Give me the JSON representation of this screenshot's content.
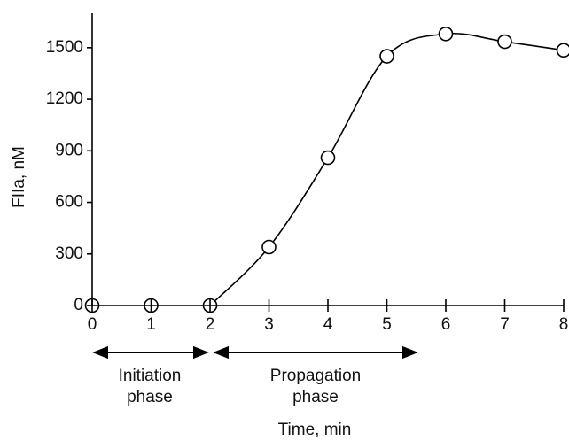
{
  "chart_data": {
    "type": "line",
    "x": [
      0,
      1,
      2,
      3,
      4,
      5,
      6,
      7,
      8
    ],
    "series": [
      {
        "color": "#000000",
        "values": [
          0,
          0,
          0,
          340,
          860,
          1450,
          1580,
          1535,
          1485
        ]
      }
    ],
    "xlim": [
      0,
      8
    ],
    "xticks": [
      0,
      1,
      2,
      3,
      4,
      5,
      6,
      7,
      8
    ],
    "ylim": [
      0,
      1700
    ],
    "yticks": [
      0,
      300,
      600,
      900,
      1200,
      1500
    ],
    "y_label": "FIIa, nM",
    "x_label": "Time, min",
    "annotations": [
      "Initiation",
      "phase",
      "Propagation",
      "phase"
    ]
  }
}
